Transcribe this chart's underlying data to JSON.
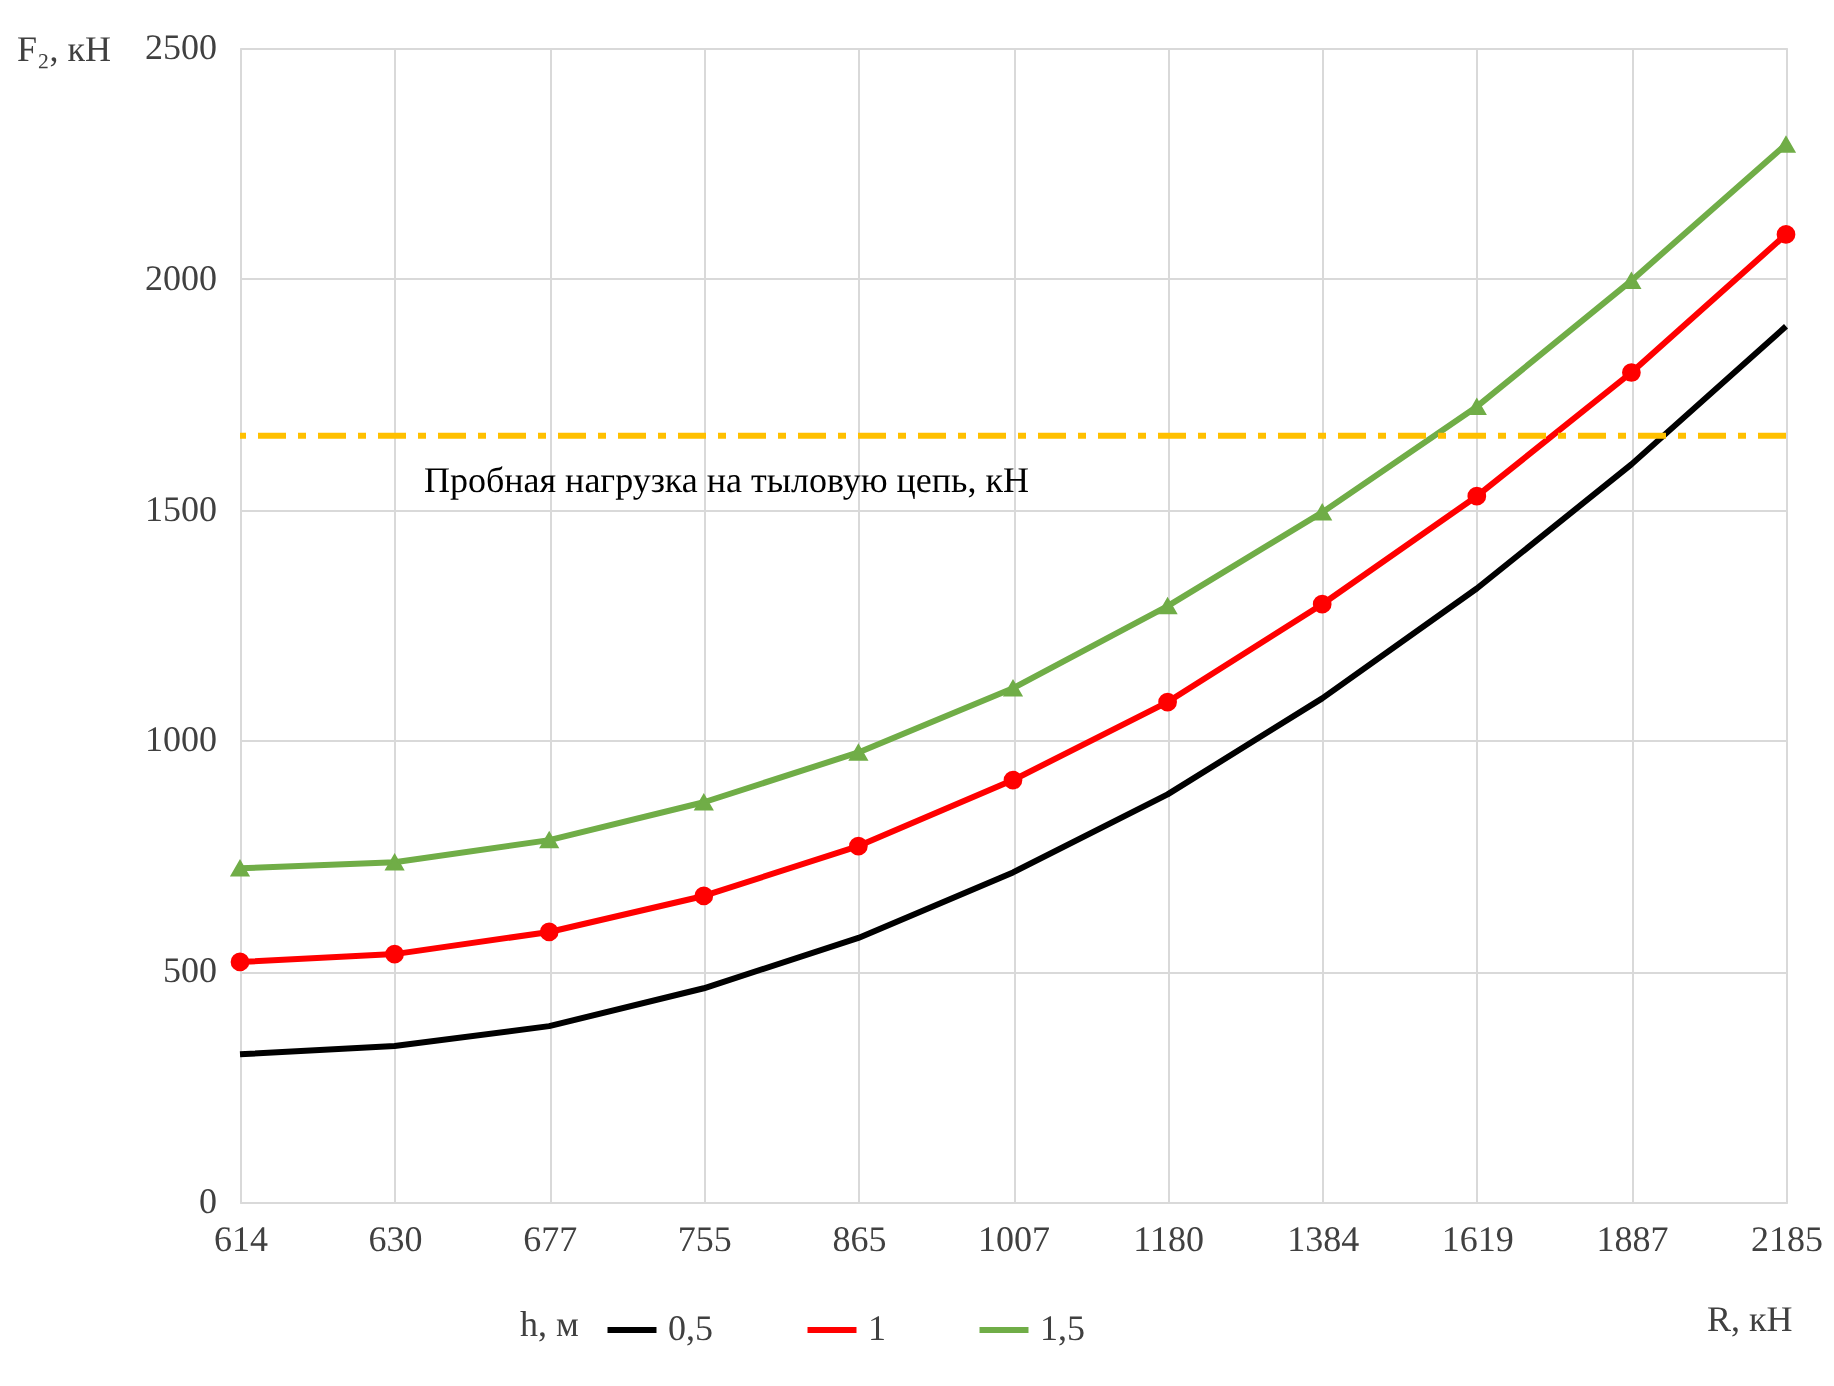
{
  "chart_data": {
    "type": "line",
    "xlabel": "R, кН",
    "ylabel": "F₂, кН",
    "legend_title": "h, м",
    "categories": [
      "614",
      "630",
      "677",
      "755",
      "865",
      "1007",
      "1180",
      "1384",
      "1619",
      "1887",
      "2185"
    ],
    "series": [
      {
        "name": "0,5",
        "color": "#000000",
        "marker": "none",
        "values": [
          320,
          338,
          381,
          463,
          572,
          714,
          883,
          1091,
          1329,
          1598,
          1897
        ]
      },
      {
        "name": "1",
        "color": "#ff0000",
        "marker": "circle",
        "values": [
          520,
          537,
          585,
          663,
          771,
          914,
          1083,
          1295,
          1529,
          1797,
          2096
        ]
      },
      {
        "name": "1,5",
        "color": "#70ad47",
        "marker": "triangle",
        "values": [
          723,
          736,
          784,
          866,
          974,
          1113,
          1291,
          1494,
          1723,
          1996,
          2291
        ]
      }
    ],
    "ylim": [
      0,
      2500
    ],
    "yticks": [
      0,
      500,
      1000,
      1500,
      2000,
      2500
    ],
    "grid": true,
    "legend": "bottom",
    "line_style": "solid",
    "ref_lines": [
      {
        "axis": "y",
        "value": 1660,
        "label": "Пробная нагрузка на тыловую цепь, кН",
        "color": "#ffc000",
        "line_style": "dashed"
      }
    ]
  }
}
